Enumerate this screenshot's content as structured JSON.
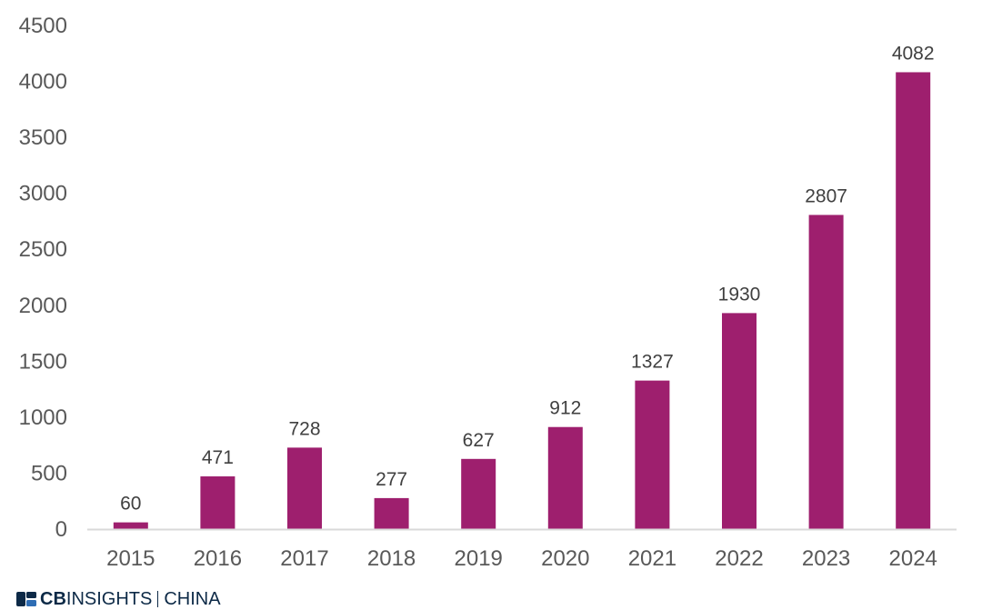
{
  "chart_data": {
    "type": "bar",
    "categories": [
      "2015",
      "2016",
      "2017",
      "2018",
      "2019",
      "2020",
      "2021",
      "2022",
      "2023",
      "2024"
    ],
    "values": [
      60,
      471,
      728,
      277,
      627,
      912,
      1327,
      1930,
      2807,
      4082
    ],
    "data_labels": [
      "60",
      "471",
      "728",
      "277",
      "627",
      "912",
      "1327",
      "1930",
      "2807",
      "4082"
    ],
    "yticks": [
      "0",
      "500",
      "1000",
      "1500",
      "2000",
      "2500",
      "3000",
      "3500",
      "4000",
      "4500"
    ],
    "ylim": [
      0,
      4500
    ],
    "title": "",
    "xlabel": "",
    "ylabel": "",
    "grid": false,
    "bar_color": "#9e1f6e",
    "axis_color": "#d9d9d9"
  },
  "brand": {
    "logo_icon": "cb-insights-logo-icon",
    "cb": "CB",
    "insights": "INSIGHTS",
    "china": "CHINA",
    "color": "#0d2a47"
  }
}
